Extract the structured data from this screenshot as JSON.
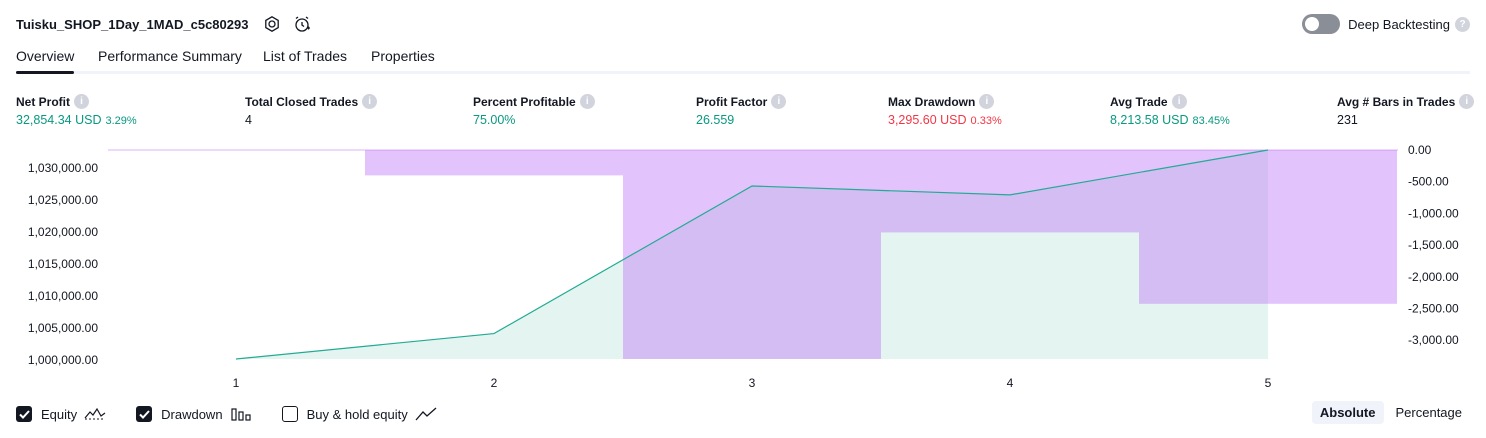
{
  "header": {
    "title": "Tuisku_SHOP_1Day_1MAD_c5c80293",
    "deep_label": "Deep Backtesting",
    "help": "?"
  },
  "tabs": [
    "Overview",
    "Performance Summary",
    "List of Trades",
    "Properties"
  ],
  "metrics": [
    {
      "label": "Net Profit",
      "value": "32,854.34 USD",
      "sub": "3.29%",
      "color": "pos"
    },
    {
      "label": "Total Closed Trades",
      "value": "4",
      "sub": "",
      "color": ""
    },
    {
      "label": "Percent Profitable",
      "value": "75.00%",
      "sub": "",
      "color": "pos"
    },
    {
      "label": "Profit Factor",
      "value": "26.559",
      "sub": "",
      "color": "pos"
    },
    {
      "label": "Max Drawdown",
      "value": "3,295.60 USD",
      "sub": "0.33%",
      "color": "neg"
    },
    {
      "label": "Avg Trade",
      "value": "8,213.58 USD",
      "sub": "83.45%",
      "color": "pos"
    },
    {
      "label": "Avg # Bars in Trades",
      "value": "231",
      "sub": "",
      "color": ""
    }
  ],
  "chart_data": {
    "type": "area",
    "x": [
      1,
      2,
      3,
      4,
      5
    ],
    "series": [
      {
        "name": "Equity",
        "values": [
          1000000,
          1004000,
          1027200,
          1025800,
          1032854.34
        ]
      },
      {
        "name": "Drawdown",
        "values": [
          0,
          -400,
          -3295.6,
          -1300,
          -2425
        ]
      }
    ],
    "y_left_ticks": [
      "1,030,000.00",
      "1,025,000.00",
      "1,020,000.00",
      "1,015,000.00",
      "1,010,000.00",
      "1,005,000.00",
      "1,000,000.00"
    ],
    "y_right_ticks": [
      "0.00",
      "-500.00",
      "-1,000.00",
      "-1,500.00",
      "-2,000.00",
      "-2,500.00",
      "-3,000.00"
    ],
    "x_ticks": [
      "1",
      "2",
      "3",
      "4",
      "5"
    ],
    "y_left_range": [
      1000000,
      1032854.34
    ],
    "y_right_range": [
      -3295.6,
      0
    ],
    "colors": {
      "equity_line": "#22ab94",
      "equity_fill": "#e1f4ef",
      "drawdown": "#ba68f8",
      "drawdown_alpha": 0.4
    }
  },
  "footer": {
    "checkboxes": [
      {
        "label": "Equity",
        "checked": true,
        "icon": "equity-line-icon"
      },
      {
        "label": "Drawdown",
        "checked": true,
        "icon": "drawdown-bars-icon"
      },
      {
        "label": "Buy & hold equity",
        "checked": false,
        "icon": "buy-hold-line-icon"
      }
    ],
    "modes": [
      "Absolute",
      "Percentage"
    ],
    "active_mode": "Absolute"
  }
}
